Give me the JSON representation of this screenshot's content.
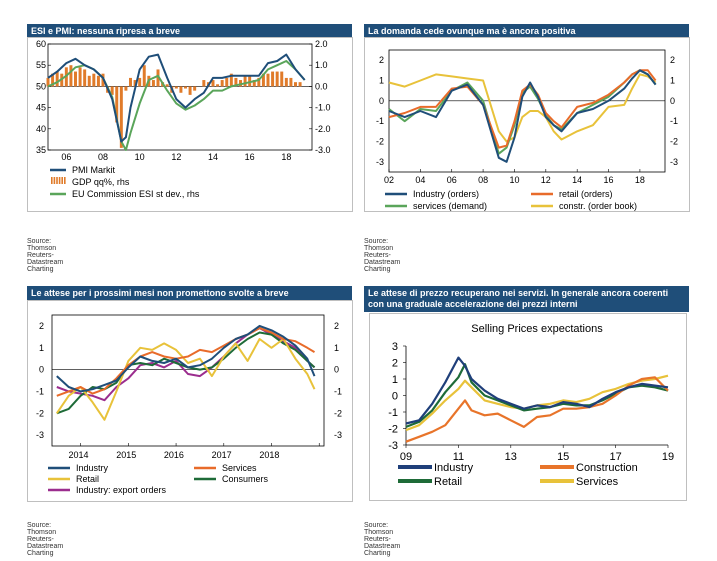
{
  "panels": [
    {
      "title": "ESI e PMI: nessuna ripresa a breve",
      "source": "Source: Thomson Reuters-Datastream Charting"
    },
    {
      "title": "La domanda cede ovunque ma è ancora positiva",
      "source": "Source: Thomson Reuters-Datastream Charting"
    },
    {
      "title": "Le attese per i prossimi mesi non promettono svolte a breve",
      "source": "Source: Thomson Reuters-Datastream Charting"
    },
    {
      "title": "Le attese di prezzo recuperano nei servizi. In generale ancora coerenti con una graduale accelerazione dei prezzi interni",
      "source": "Source: Thomson Reuters-Datastream Charting"
    }
  ],
  "chart_data": [
    {
      "type": "line",
      "left_ticks": [
        "60",
        "55",
        "50",
        "45",
        "40",
        "35"
      ],
      "right_ticks": [
        "2.0",
        "1.0",
        "0.0",
        "-1.0",
        "-2.0",
        "-3.0"
      ],
      "x_ticks": [
        "06",
        "08",
        "10",
        "12",
        "14",
        "16",
        "18"
      ],
      "ylim_left": [
        35,
        60
      ],
      "ylim_right": [
        -3,
        2
      ],
      "x": [
        2005.0,
        2005.5,
        2006.0,
        2006.5,
        2007.0,
        2007.5,
        2008.0,
        2008.5,
        2009.0,
        2009.25,
        2009.5,
        2010.0,
        2010.5,
        2011.0,
        2011.5,
        2012.0,
        2012.5,
        2013.0,
        2013.5,
        2014.0,
        2014.5,
        2015.0,
        2015.5,
        2016.0,
        2016.5,
        2017.0,
        2017.5,
        2018.0,
        2018.5,
        2019.0
      ],
      "series": [
        {
          "name": "PMI Markit",
          "axis": "left",
          "color": "#1f4e79",
          "values": [
            52,
            53.5,
            55.5,
            56.5,
            55,
            54,
            52,
            47,
            37,
            38,
            45,
            54,
            57,
            57.5,
            52,
            47,
            45,
            47,
            48.5,
            52,
            52,
            52.5,
            52.5,
            52.5,
            52.5,
            55.5,
            56,
            57.5,
            54,
            51.5
          ]
        },
        {
          "name": "EU Commission ESI st dev., rhs",
          "axis": "right",
          "color": "#5aa55a",
          "values": [
            0.0,
            0.2,
            0.5,
            0.9,
            1.0,
            0.8,
            0.4,
            -0.5,
            -2.6,
            -3.0,
            -2.2,
            -0.8,
            0.3,
            0.5,
            -0.2,
            -0.8,
            -1.1,
            -0.9,
            -0.6,
            -0.2,
            -0.2,
            0.0,
            0.1,
            0.2,
            0.3,
            0.8,
            1.0,
            1.2,
            0.8,
            0.3
          ]
        }
      ],
      "bars": {
        "name": "GDP qq%, rhs",
        "axis": "right",
        "color": "#e07b2a",
        "x": [
          2005.0,
          2005.25,
          2005.5,
          2005.75,
          2006.0,
          2006.25,
          2006.5,
          2006.75,
          2007.0,
          2007.25,
          2007.5,
          2007.75,
          2008.0,
          2008.25,
          2008.5,
          2008.75,
          2009.0,
          2009.25,
          2009.5,
          2009.75,
          2010.0,
          2010.25,
          2010.5,
          2010.75,
          2011.0,
          2011.25,
          2011.5,
          2011.75,
          2012.0,
          2012.25,
          2012.5,
          2012.75,
          2013.0,
          2013.25,
          2013.5,
          2013.75,
          2014.0,
          2014.25,
          2014.5,
          2014.75,
          2015.0,
          2015.25,
          2015.5,
          2015.75,
          2016.0,
          2016.25,
          2016.5,
          2016.75,
          2017.0,
          2017.25,
          2017.5,
          2017.75,
          2018.0,
          2018.25,
          2018.5,
          2018.75
        ],
        "values": [
          0.4,
          0.6,
          0.7,
          0.6,
          0.9,
          1.0,
          0.7,
          0.9,
          0.8,
          0.5,
          0.6,
          0.5,
          0.6,
          -0.3,
          -0.4,
          -1.7,
          -2.9,
          -0.2,
          0.4,
          0.3,
          0.4,
          1.0,
          0.5,
          0.3,
          0.8,
          0.2,
          0.1,
          -0.3,
          -0.1,
          -0.3,
          -0.1,
          -0.4,
          -0.2,
          0.0,
          0.3,
          0.2,
          0.3,
          0.1,
          0.3,
          0.4,
          0.6,
          0.4,
          0.3,
          0.5,
          0.5,
          0.3,
          0.4,
          0.6,
          0.6,
          0.7,
          0.7,
          0.7,
          0.4,
          0.4,
          0.2,
          0.2
        ]
      },
      "legend": [
        "PMI Markit",
        "GDP qq%, rhs",
        "EU Commission ESI st dev., rhs"
      ]
    },
    {
      "type": "line",
      "left_ticks": [
        "2",
        "1",
        "0",
        "-1",
        "-2",
        "-3"
      ],
      "right_ticks": [
        "2",
        "1",
        "0",
        "-1",
        "-2",
        "-3"
      ],
      "x_ticks": [
        "02",
        "04",
        "06",
        "08",
        "10",
        "12",
        "14",
        "16",
        "18"
      ],
      "ylim": [
        -3.5,
        2.5
      ],
      "x": [
        2002.0,
        2003.0,
        2004.0,
        2005.0,
        2006.0,
        2007.0,
        2008.0,
        2009.0,
        2009.5,
        2010.0,
        2010.5,
        2011.0,
        2011.5,
        2012.0,
        2012.5,
        2013.0,
        2014.0,
        2015.0,
        2016.0,
        2017.0,
        2017.5,
        2018.0,
        2018.5,
        2019.0
      ],
      "series": [
        {
          "name": "Industry (orders)",
          "color": "#1f4e79",
          "values": [
            -0.5,
            -0.8,
            -0.5,
            -0.8,
            0.5,
            0.8,
            -0.2,
            -2.8,
            -3.0,
            -1.8,
            0.2,
            0.9,
            0.2,
            -0.8,
            -1.2,
            -1.5,
            -0.6,
            -0.4,
            0.0,
            0.6,
            1.1,
            1.5,
            1.3,
            0.8
          ]
        },
        {
          "name": "retail (orders)",
          "color": "#e86b2a",
          "values": [
            -0.8,
            -0.6,
            -0.3,
            -0.3,
            0.6,
            0.7,
            -0.2,
            -2.3,
            -2.2,
            -1.0,
            0.5,
            0.8,
            0.3,
            -0.6,
            -1.0,
            -1.3,
            -0.3,
            -0.1,
            0.3,
            0.9,
            1.3,
            1.5,
            1.5,
            1.0
          ]
        },
        {
          "name": "services (demand)",
          "color": "#5aa55a",
          "values": [
            -0.4,
            -1.0,
            -0.4,
            -0.5,
            0.5,
            0.9,
            0.0,
            -2.6,
            -2.3,
            -1.2,
            0.4,
            0.7,
            0.1,
            -0.7,
            -1.2,
            -1.4,
            -0.6,
            -0.2,
            0.2,
            0.9,
            1.3,
            1.5,
            1.3,
            0.8
          ]
        },
        {
          "name": "constr. (order book)",
          "color": "#e8c23a",
          "values": [
            0.9,
            0.7,
            1.0,
            1.3,
            1.2,
            1.1,
            1.0,
            -1.5,
            -2.0,
            -1.8,
            -0.8,
            -0.5,
            -0.5,
            -0.8,
            -1.5,
            -1.9,
            -1.5,
            -1.2,
            -0.3,
            -0.2,
            0.6,
            1.3,
            1.2,
            0.9
          ]
        }
      ],
      "legend": [
        "Industry (orders)",
        "retail (orders)",
        "services (demand)",
        "constr. (order book)"
      ]
    },
    {
      "type": "line",
      "left_ticks": [
        "2",
        "1",
        "0",
        "-1",
        "-2",
        "-3"
      ],
      "right_ticks": [
        "2",
        "1",
        "0",
        "-1",
        "-2",
        "-3"
      ],
      "x_ticks": [
        "2014",
        "2015",
        "2016",
        "2017",
        "2018"
      ],
      "ylim": [
        -3.5,
        2.5
      ],
      "x": [
        2013.5,
        2013.75,
        2014.0,
        2014.25,
        2014.5,
        2014.75,
        2015.0,
        2015.25,
        2015.5,
        2015.75,
        2016.0,
        2016.25,
        2016.5,
        2016.75,
        2017.0,
        2017.25,
        2017.5,
        2017.75,
        2018.0,
        2018.25,
        2018.5,
        2018.75,
        2018.9
      ],
      "series": [
        {
          "name": "Industry",
          "color": "#1f4e79",
          "values": [
            -0.3,
            -0.8,
            -1.0,
            -0.9,
            -0.7,
            -0.5,
            0.1,
            0.6,
            0.4,
            0.3,
            0.5,
            0.1,
            0.2,
            0.5,
            1.0,
            1.4,
            1.6,
            2.0,
            1.8,
            1.5,
            1.1,
            0.5,
            -0.3
          ]
        },
        {
          "name": "Services",
          "color": "#e86b2a",
          "values": [
            -1.2,
            -1.0,
            -0.8,
            -1.1,
            -0.9,
            -0.4,
            0.2,
            0.6,
            0.8,
            0.6,
            0.5,
            0.6,
            0.9,
            0.8,
            1.1,
            1.4,
            1.6,
            1.9,
            1.7,
            1.4,
            1.3,
            1.0,
            0.8
          ]
        },
        {
          "name": "Retail",
          "color": "#e8c23a",
          "values": [
            -2.0,
            -1.2,
            -0.8,
            -1.5,
            -2.3,
            -1.0,
            0.4,
            1.0,
            0.9,
            1.2,
            0.9,
            0.3,
            0.5,
            -0.3,
            0.6,
            1.2,
            0.4,
            1.4,
            1.0,
            1.4,
            0.5,
            -0.2,
            -0.9
          ]
        },
        {
          "name": "Consumers",
          "color": "#1e6b38",
          "values": [
            -2.0,
            -1.8,
            -1.2,
            -0.8,
            -0.9,
            -0.6,
            0.2,
            0.3,
            0.2,
            0.5,
            0.3,
            0.1,
            0.0,
            0.1,
            0.5,
            1.0,
            1.4,
            1.7,
            1.6,
            1.2,
            0.9,
            0.4,
            0.1
          ]
        },
        {
          "name": "Industry: export orders",
          "color": "#9b2d8e",
          "values": [
            -0.8,
            -1.0,
            -1.1,
            -1.2,
            -1.4,
            -0.8,
            -0.4,
            0.2,
            0.3,
            0.1,
            0.4,
            -0.2,
            -0.3,
            0.1,
            0.6,
            1.2,
            1.6,
            1.9,
            1.6,
            1.3,
            1.0,
            0.4,
            0.1
          ]
        }
      ],
      "legend": [
        "Industry",
        "Services",
        "Retail",
        "Consumers",
        "Industry: export orders"
      ]
    },
    {
      "type": "line",
      "title": "Selling Prices expectations",
      "left_ticks": [
        "3",
        "2",
        "1",
        "0",
        "-1",
        "-2",
        "-3"
      ],
      "x_ticks": [
        "09",
        "11",
        "13",
        "15",
        "17",
        "19"
      ],
      "ylim": [
        -3,
        3
      ],
      "x": [
        2009.0,
        2009.5,
        2010.0,
        2010.5,
        2011.0,
        2011.25,
        2011.5,
        2012.0,
        2012.5,
        2013.0,
        2013.5,
        2014.0,
        2014.5,
        2015.0,
        2015.5,
        2016.0,
        2016.5,
        2017.0,
        2017.5,
        2018.0,
        2018.5,
        2019.0
      ],
      "series": [
        {
          "name": "Industry",
          "color": "#1f3f7a",
          "values": [
            -1.7,
            -1.5,
            -0.5,
            0.8,
            2.3,
            1.8,
            1.0,
            0.3,
            -0.2,
            -0.5,
            -0.8,
            -0.6,
            -0.7,
            -0.4,
            -0.5,
            -0.7,
            -0.2,
            0.2,
            0.5,
            0.7,
            0.6,
            0.5
          ]
        },
        {
          "name": "Construction",
          "color": "#e8742a",
          "values": [
            -2.8,
            -2.5,
            -2.2,
            -1.8,
            -0.8,
            -0.3,
            -0.9,
            -1.2,
            -1.1,
            -1.5,
            -1.9,
            -1.3,
            -1.2,
            -0.8,
            -0.8,
            -0.7,
            -0.5,
            0.0,
            0.6,
            1.0,
            1.1,
            0.3
          ]
        },
        {
          "name": "Retail",
          "color": "#1e6b38",
          "values": [
            -1.9,
            -1.6,
            -0.9,
            0.2,
            1.1,
            1.9,
            0.8,
            0.0,
            -0.3,
            -0.6,
            -0.9,
            -0.8,
            -0.7,
            -0.5,
            -0.6,
            -0.6,
            -0.3,
            0.1,
            0.5,
            0.6,
            0.5,
            0.3
          ]
        },
        {
          "name": "Services",
          "color": "#e8c23a",
          "values": [
            -2.1,
            -1.8,
            -1.1,
            -0.3,
            0.4,
            0.9,
            0.5,
            -0.3,
            -0.5,
            -0.7,
            -0.8,
            -0.6,
            -0.5,
            -0.3,
            -0.4,
            -0.2,
            0.2,
            0.4,
            0.7,
            0.9,
            1.0,
            1.2
          ]
        }
      ],
      "legend": [
        "Industry",
        "Construction",
        "Retail",
        "Services"
      ]
    }
  ]
}
